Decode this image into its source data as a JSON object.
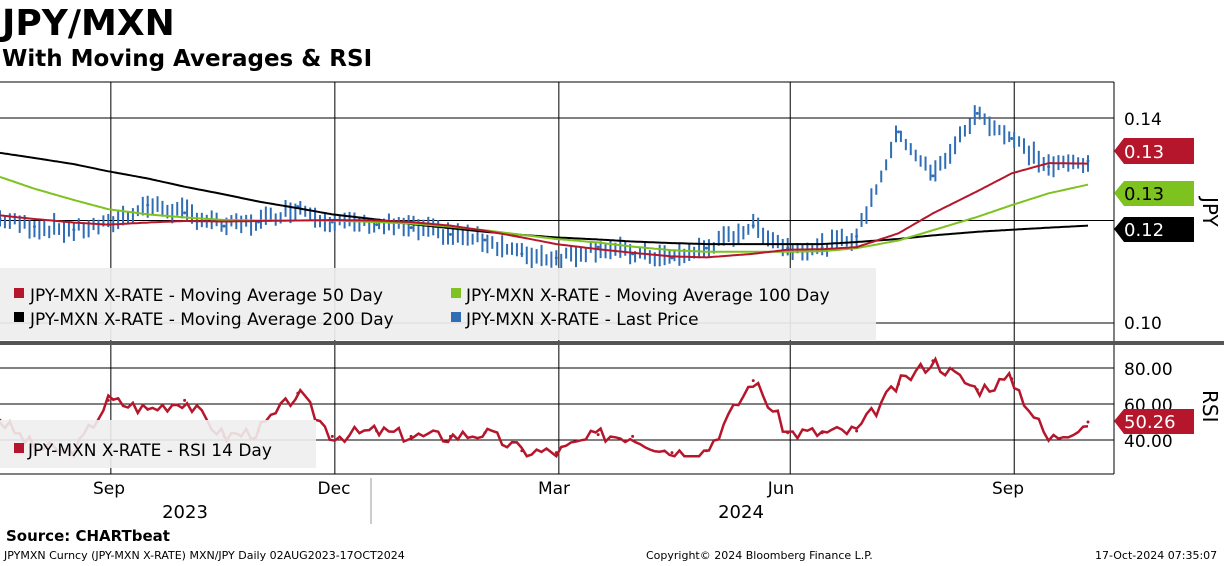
{
  "header": {
    "title": "JPY/MXN",
    "subtitle": "With Moving Averages & RSI"
  },
  "footer": {
    "source": "Source: CHARTbeat",
    "ticker": "JPYMXN Curncy (JPY-MXN X-RATE) MXN/JPY  Daily 02AUG2023-17OCT2024",
    "copyright": "Copyright© 2024 Bloomberg Finance L.P.",
    "timestamp": "17-Oct-2024 07:35:07"
  },
  "colors": {
    "price": "#2f6eb5",
    "ma50": "#b5162b",
    "ma100": "#7ec21f",
    "ma200": "#000000",
    "rsi": "#b5162b",
    "legend_bg": "#eeeeee"
  },
  "chart_data": [
    {
      "type": "line",
      "ylabel": "JPY",
      "ylim": [
        0.1,
        0.145
      ],
      "yticks": [
        "0.14",
        "0.10"
      ],
      "grid": true,
      "legend_position": "bottom-left",
      "legend": [
        "JPY-MXN X-RATE - Moving Average 50 Day",
        "JPY-MXN X-RATE - Moving Average 100 Day",
        "JPY-MXN X-RATE - Moving Average 200 Day",
        "JPY-MXN X-RATE - Last Price"
      ],
      "x_month_labels": [
        "Sep",
        "Dec",
        "Mar",
        "Jun",
        "Sep"
      ],
      "x_year_labels": [
        "2023",
        "2024"
      ],
      "last_value_labels": {
        "ma50": "0.13",
        "ma100": "0.13",
        "ma200": "0.12"
      },
      "x": [
        "2023-08-02",
        "2023-08-16",
        "2023-09-01",
        "2023-09-15",
        "2023-10-01",
        "2023-10-16",
        "2023-11-01",
        "2023-11-15",
        "2023-12-01",
        "2023-12-15",
        "2024-01-02",
        "2024-01-16",
        "2024-02-01",
        "2024-02-15",
        "2024-03-01",
        "2024-03-15",
        "2024-04-01",
        "2024-04-15",
        "2024-05-01",
        "2024-05-15",
        "2024-06-03",
        "2024-06-17",
        "2024-07-01",
        "2024-07-15",
        "2024-08-01",
        "2024-08-15",
        "2024-09-02",
        "2024-09-16",
        "2024-10-01",
        "2024-10-17"
      ],
      "series": [
        {
          "name": "JPY-MXN X-RATE - Last Price",
          "values": [
            0.1203,
            0.1188,
            0.1182,
            0.1193,
            0.123,
            0.1215,
            0.1189,
            0.1197,
            0.1227,
            0.1197,
            0.1192,
            0.1186,
            0.1173,
            0.1162,
            0.1135,
            0.1127,
            0.1148,
            0.1135,
            0.1127,
            0.1146,
            0.119,
            0.1146,
            0.1147,
            0.1169,
            0.1373,
            0.1287,
            0.1409,
            0.136,
            0.1305,
            0.1316
          ]
        },
        {
          "name": "JPY-MXN X-RATE - Moving Average 50 Day",
          "values": [
            0.121,
            0.1203,
            0.1196,
            0.1192,
            0.1196,
            0.1199,
            0.1198,
            0.1199,
            0.12,
            0.1201,
            0.12,
            0.1197,
            0.119,
            0.118,
            0.1167,
            0.1154,
            0.1144,
            0.1137,
            0.113,
            0.1128,
            0.1135,
            0.1143,
            0.1144,
            0.1148,
            0.1175,
            0.1214,
            0.1257,
            0.1292,
            0.1312,
            0.1311
          ]
        },
        {
          "name": "JPY-MXN X-RATE - Moving Average 100 Day",
          "values": [
            0.1285,
            0.1262,
            0.124,
            0.1222,
            0.1212,
            0.1206,
            0.1201,
            0.12,
            0.12,
            0.12,
            0.1197,
            0.1194,
            0.1188,
            0.1181,
            0.1172,
            0.1164,
            0.1157,
            0.1149,
            0.1142,
            0.1139,
            0.1139,
            0.1139,
            0.114,
            0.1146,
            0.1161,
            0.1181,
            0.1207,
            0.123,
            0.1253,
            0.127
          ]
        },
        {
          "name": "JPY-MXN X-RATE - Moving Average 200 Day",
          "values": [
            0.1332,
            0.1322,
            0.131,
            0.1296,
            0.1282,
            0.1266,
            0.1251,
            0.1237,
            0.1224,
            0.1212,
            0.1202,
            0.1193,
            0.1185,
            0.1178,
            0.1172,
            0.1167,
            0.1163,
            0.1159,
            0.1156,
            0.1154,
            0.1154,
            0.1154,
            0.1154,
            0.1158,
            0.1164,
            0.1171,
            0.1178,
            0.1182,
            0.1186,
            0.119
          ]
        }
      ]
    },
    {
      "type": "line",
      "ylabel": "RSI",
      "ylim": [
        30,
        90
      ],
      "yticks": [
        "80.00",
        "60.00",
        "40.00"
      ],
      "grid": true,
      "legend_position": "bottom-left",
      "legend": [
        "JPY-MXN X-RATE - RSI 14 Day"
      ],
      "last_value_label": "50.26",
      "x": [
        "2023-08-02",
        "2023-08-16",
        "2023-09-01",
        "2023-09-15",
        "2023-10-01",
        "2023-10-16",
        "2023-11-01",
        "2023-11-15",
        "2023-12-01",
        "2023-12-15",
        "2024-01-02",
        "2024-01-16",
        "2024-02-01",
        "2024-02-15",
        "2024-03-01",
        "2024-03-15",
        "2024-04-01",
        "2024-04-15",
        "2024-05-01",
        "2024-05-15",
        "2024-06-03",
        "2024-06-17",
        "2024-07-01",
        "2024-07-15",
        "2024-08-01",
        "2024-08-15",
        "2024-09-02",
        "2024-09-16",
        "2024-10-01",
        "2024-10-17"
      ],
      "series": [
        {
          "name": "JPY-MXN X-RATE - RSI 14 Day",
          "values": [
            51,
            36,
            33,
            62,
            57,
            62,
            42,
            45,
            66,
            42,
            45,
            42,
            42,
            44,
            34,
            33,
            43,
            42,
            33,
            34,
            73,
            44,
            44,
            45,
            71,
            84,
            68,
            74,
            40,
            50
          ]
        }
      ]
    }
  ]
}
